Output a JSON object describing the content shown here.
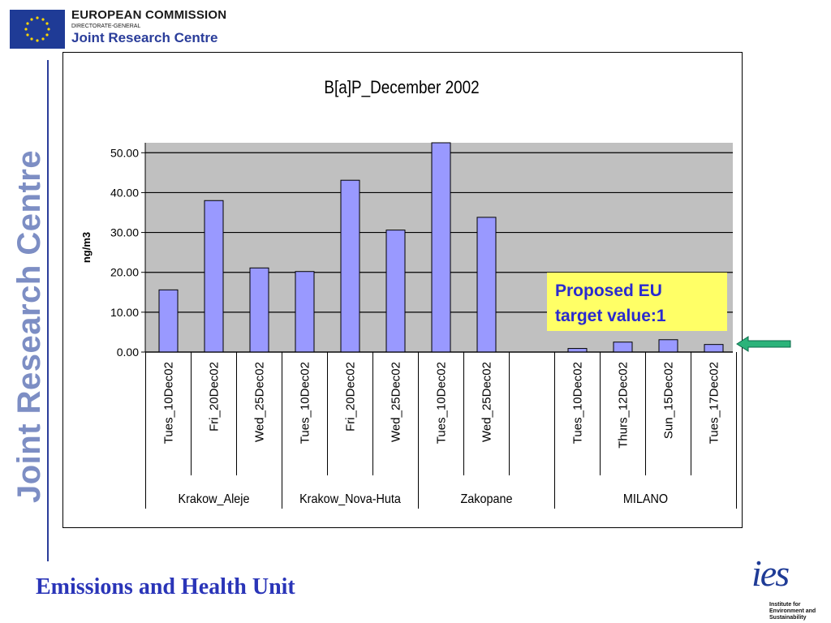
{
  "header": {
    "org_title": "EUROPEAN COMMISSION",
    "org_subtitle": "DIRECTORATE-GENERAL",
    "org_name": "Joint Research Centre"
  },
  "sidebar": {
    "vertical_title": "Joint Research Centre"
  },
  "footer": {
    "title": "Emissions and Health Unit",
    "logo_mark": "ies",
    "logo_lines": [
      "Institute for",
      "Environment and",
      "Sustainability"
    ]
  },
  "colors": {
    "bar": "#9999ff",
    "plot_bg": "#c0c0c0",
    "annotation_bg": "#ffff66",
    "annotation_text": "#2a2ad0",
    "arrow": "#00a06a",
    "brand_blue": "#2a3d9a"
  },
  "chart_data": {
    "type": "bar",
    "title": "B[a]P_December 2002",
    "xlabel": "",
    "ylabel": "ng/m3",
    "ylim": [
      0,
      52.5
    ],
    "yticks": [
      0,
      10,
      20,
      30,
      40,
      50
    ],
    "ytick_labels": [
      "0.00",
      "10.00",
      "20.00",
      "30.00",
      "40.00",
      "50.00"
    ],
    "grid": true,
    "categories": [
      "Tues_10Dec02",
      "Fri_20Dec02",
      "Wed_25Dec02",
      "Tues_10Dec02",
      "Fri_20Dec02",
      "Wed_25Dec02",
      "Tues_10Dec02",
      "Wed_25Dec02",
      "",
      "Tues_10Dec02",
      "Thurs_12Dec02",
      "Sun_15Dec02",
      "Tues_17Dec02"
    ],
    "values": [
      15.6,
      38.0,
      21.1,
      20.2,
      43.1,
      30.6,
      52.5,
      33.8,
      null,
      0.9,
      2.5,
      3.1,
      1.9
    ],
    "groups": [
      {
        "name": "Krakow_Aleje",
        "start": 0,
        "count": 3
      },
      {
        "name": "Krakow_Nova-Huta",
        "start": 3,
        "count": 3
      },
      {
        "name": "Zakopane",
        "start": 6,
        "count": 3
      },
      {
        "name": "MILANO",
        "start": 9,
        "count": 4
      }
    ],
    "annotation": {
      "text_lines": [
        "Proposed EU",
        "target value:1"
      ]
    }
  }
}
